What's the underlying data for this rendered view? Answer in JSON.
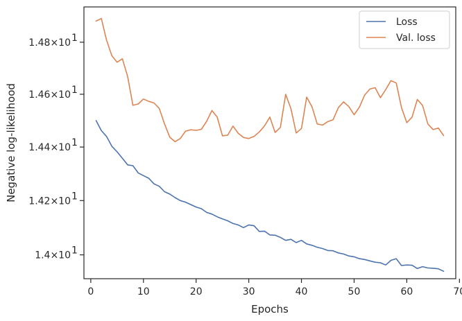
{
  "chart_data": {
    "type": "line",
    "xlabel": "Epochs",
    "ylabel": "Negative log-likelihood",
    "xlim": [
      -1.3,
      69.3
    ],
    "ylim": [
      13.913,
      14.937
    ],
    "y_scale": "log",
    "x_ticks": [
      0,
      10,
      20,
      30,
      40,
      50,
      60,
      70
    ],
    "x_tick_labels": [
      "0",
      "10",
      "20",
      "30",
      "40",
      "50",
      "60",
      "70"
    ],
    "y_ticks": [
      {
        "value": 14.0,
        "mantissa": "1.4",
        "exponent": "1"
      },
      {
        "value": 14.2,
        "mantissa": "1.42",
        "exponent": "1"
      },
      {
        "value": 14.4,
        "mantissa": "1.44",
        "exponent": "1"
      },
      {
        "value": 14.6,
        "mantissa": "1.46",
        "exponent": "1"
      },
      {
        "value": 14.8,
        "mantissa": "1.48",
        "exponent": "1"
      }
    ],
    "y_tick_times": "×10",
    "grid": false,
    "legend_position": "top-right",
    "x": [
      1,
      2,
      3,
      4,
      5,
      6,
      7,
      8,
      9,
      10,
      11,
      12,
      13,
      14,
      15,
      16,
      17,
      18,
      19,
      20,
      21,
      22,
      23,
      24,
      25,
      26,
      27,
      28,
      29,
      30,
      31,
      32,
      33,
      34,
      35,
      36,
      37,
      38,
      39,
      40,
      41,
      42,
      43,
      44,
      45,
      46,
      47,
      48,
      49,
      50,
      51,
      52,
      53,
      54,
      55,
      56,
      57,
      58,
      59,
      60,
      61,
      62,
      63,
      64,
      65,
      66,
      67
    ],
    "series": [
      {
        "name": "Loss",
        "color": "#4c72b0",
        "values": [
          14.5,
          14.462,
          14.44,
          14.403,
          14.382,
          14.358,
          14.333,
          14.33,
          14.303,
          14.293,
          14.283,
          14.262,
          14.253,
          14.233,
          14.224,
          14.211,
          14.2,
          14.194,
          14.185,
          14.176,
          14.17,
          14.156,
          14.15,
          14.14,
          14.132,
          14.125,
          14.115,
          14.11,
          14.1,
          14.11,
          14.107,
          14.086,
          14.087,
          14.073,
          14.072,
          14.064,
          14.053,
          14.057,
          14.045,
          14.053,
          14.04,
          14.035,
          14.028,
          14.023,
          14.016,
          14.015,
          14.007,
          14.003,
          13.996,
          13.993,
          13.986,
          13.983,
          13.978,
          13.973,
          13.971,
          13.963,
          13.98,
          13.986,
          13.961,
          13.963,
          13.962,
          13.95,
          13.957,
          13.952,
          13.951,
          13.949,
          13.94
        ]
      },
      {
        "name": "Val. loss",
        "color": "#dd8452",
        "values": [
          14.882,
          14.892,
          14.808,
          14.748,
          14.723,
          14.736,
          14.668,
          14.558,
          14.563,
          14.582,
          14.573,
          14.567,
          14.546,
          14.487,
          14.437,
          14.42,
          14.432,
          14.46,
          14.465,
          14.463,
          14.467,
          14.497,
          14.538,
          14.513,
          14.442,
          14.445,
          14.479,
          14.452,
          14.436,
          14.432,
          14.44,
          14.457,
          14.48,
          14.513,
          14.455,
          14.474,
          14.6,
          14.545,
          14.453,
          14.47,
          14.589,
          14.553,
          14.487,
          14.483,
          14.496,
          14.503,
          14.549,
          14.571,
          14.553,
          14.522,
          14.551,
          14.597,
          14.62,
          14.625,
          14.587,
          14.618,
          14.652,
          14.643,
          14.549,
          14.492,
          14.513,
          14.58,
          14.557,
          14.487,
          14.466,
          14.472,
          14.443
        ]
      }
    ]
  }
}
